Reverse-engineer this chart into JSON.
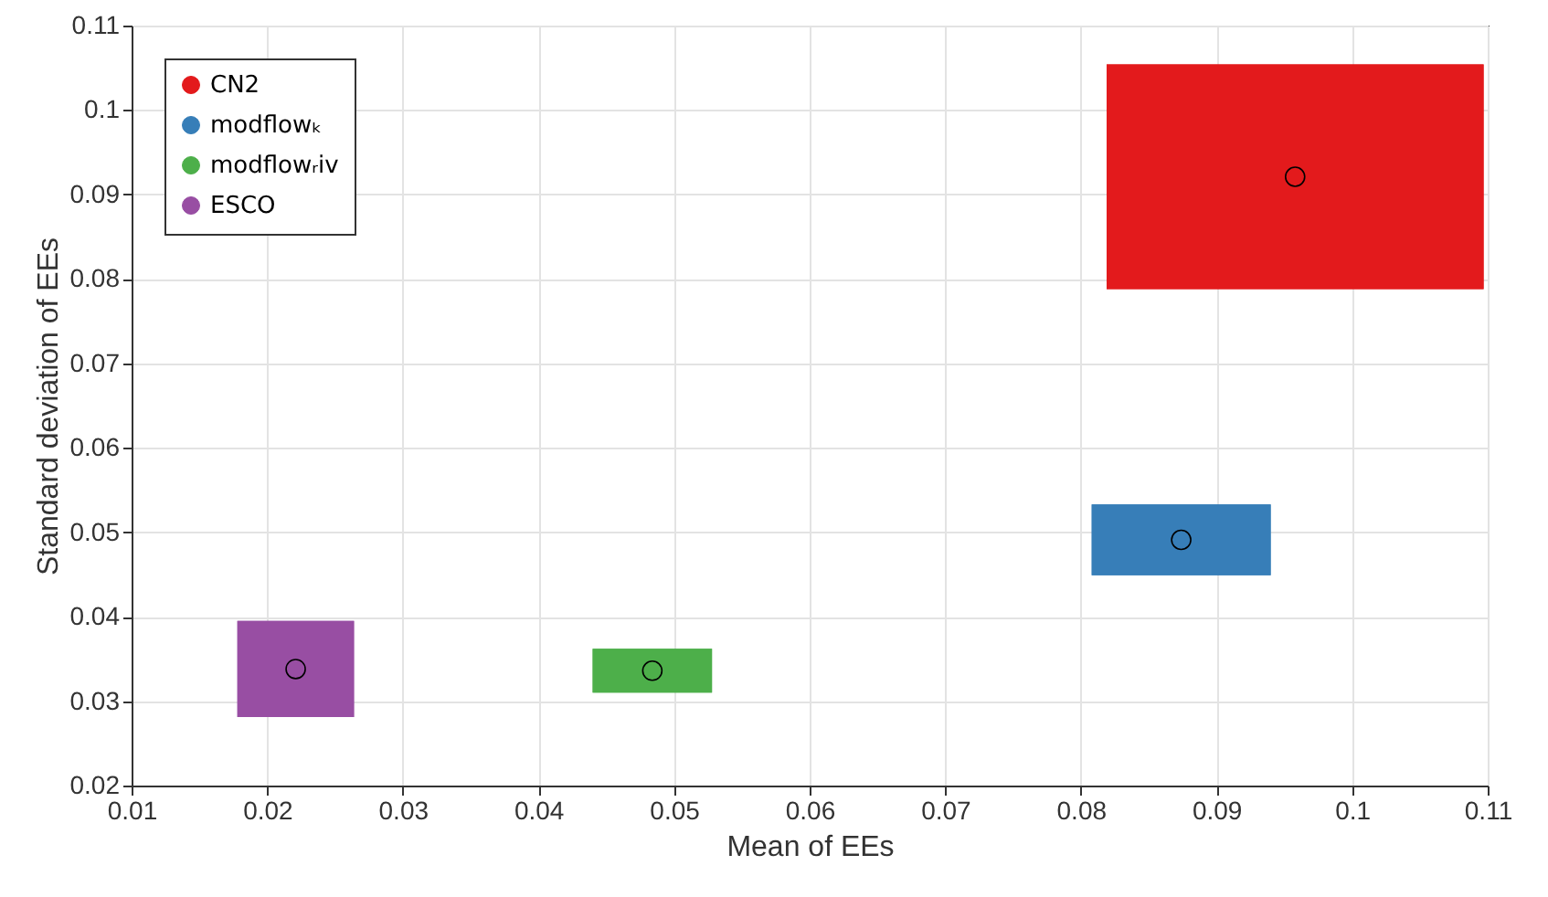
{
  "chart_data": {
    "type": "scatter",
    "xlabel": "Mean of EEs",
    "ylabel": "Standard deviation of EEs",
    "xlim": [
      0.01,
      0.11
    ],
    "xticks": [
      0.01,
      0.02,
      0.03,
      0.04,
      0.05,
      0.06,
      0.07,
      0.08,
      0.09,
      0.1,
      0.11
    ],
    "ylim": [
      0.02,
      0.11
    ],
    "yticks": [
      0.02,
      0.03,
      0.04,
      0.05,
      0.06,
      0.07,
      0.08,
      0.09,
      0.1,
      0.11
    ],
    "grid": true,
    "legend": "top left",
    "marker": "circle",
    "series": [
      {
        "name": "CN2",
        "color": "#e31a1c",
        "x": [
          0.0958
        ],
        "values": [
          0.0921
        ],
        "errors": [
          0.0133
        ],
        "xerrors": [
          0.0139
        ]
      },
      {
        "name": "modflowₖ",
        "color": "#377eb8",
        "x": [
          0.0874
        ],
        "values": [
          0.0491
        ],
        "errors": [
          0.0042
        ],
        "xerrors": [
          0.0066
        ]
      },
      {
        "name": "modflowᵣiv",
        "color": "#4daf4a",
        "x": [
          0.0484
        ],
        "values": [
          0.0336
        ],
        "errors": [
          0.0026
        ],
        "xerrors": [
          0.0044
        ]
      },
      {
        "name": "ESCO",
        "color": "#984ea3",
        "x": [
          0.0221
        ],
        "values": [
          0.0338
        ],
        "errors": [
          0.0057
        ],
        "xerrors": [
          0.0043
        ]
      }
    ]
  }
}
